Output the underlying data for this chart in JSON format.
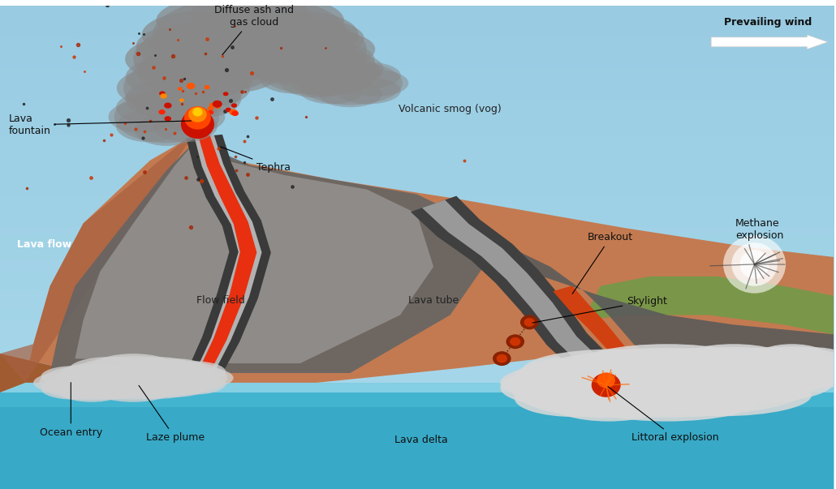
{
  "figsize": [
    10.3,
    6.03
  ],
  "dpi": 100,
  "sky_color_top": "#a8d8ea",
  "sky_color_bottom": "#c8eaf5",
  "ocean_color": "#38aac8",
  "land_brown": "#c47a50",
  "land_dark": "#b06838",
  "land_green": "#7a9648",
  "flow_dark": "#606060",
  "flow_mid": "#888888",
  "flow_light": "#c0c0c0",
  "lava_red": "#e83010",
  "lava_orange": "#ff5500",
  "lava_yellow": "#ffaa00",
  "smoke_gray": "#999999",
  "steam_white": "#d8d8d8",
  "labels": {
    "diffuse_ash": "Diffuse ash and\ngas cloud",
    "prevailing_wind": "Prevailing wind",
    "vog": "Volcanic smog (vog)",
    "lava_fountain": "Lava\nfountain",
    "tephra": "Tephra",
    "lava_flow": "Lava flow",
    "flow_field": "Flow field",
    "lava_tube": "Lava tube",
    "breakout": "Breakout",
    "methane": "Methane\nexplosion",
    "skylight": "Skylight",
    "ocean_entry": "Ocean entry",
    "laze_plume": "Laze plume",
    "lava_delta": "Lava delta",
    "littoral": "Littoral explosion"
  }
}
